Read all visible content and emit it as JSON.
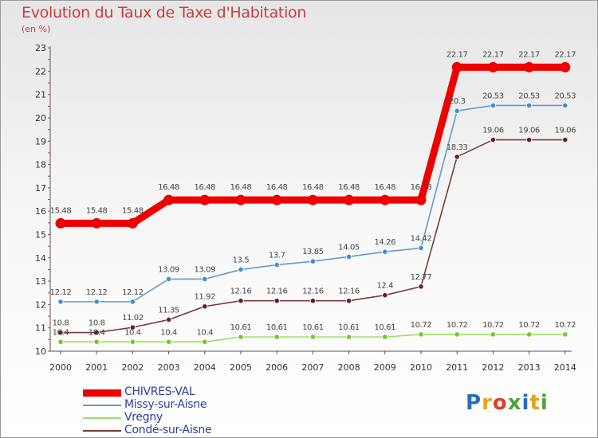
{
  "title": "Evolution du Taux de Taxe d'Habitation",
  "unit_label": "(en %)",
  "logo": {
    "text": "Proxiti",
    "colors": [
      "#2b6cb8",
      "#e8a21a",
      "#e23c2c",
      "#49a53a",
      "#2b6cb8",
      "#e8a21a",
      "#49a53a"
    ]
  },
  "chart_data": {
    "type": "line",
    "title": "Evolution du Taux de Taxe d'Habitation",
    "ylabel": "(en %)",
    "xlabel": "",
    "x": [
      "2000",
      "2001",
      "2002",
      "2003",
      "2004",
      "2005",
      "2006",
      "2007",
      "2008",
      "2009",
      "2010",
      "2011",
      "2012",
      "2013",
      "2014"
    ],
    "ylim": [
      10,
      23
    ],
    "yticks": [
      "10",
      "11",
      "12",
      "13",
      "14",
      "15",
      "16",
      "17",
      "18",
      "19",
      "20",
      "21",
      "22",
      "23"
    ],
    "grid": false,
    "legend_position": "bottom-left",
    "series": [
      {
        "name": "CHIVRES-VAL",
        "color": "#ee0000",
        "marker_color": "#ee0000",
        "values": [
          15.48,
          15.48,
          15.48,
          16.48,
          16.48,
          16.48,
          16.48,
          16.48,
          16.48,
          16.48,
          16.48,
          22.17,
          22.17,
          22.17,
          22.17
        ],
        "labels": [
          "15.48",
          "15.48",
          "15.48",
          "16.48",
          "16.48",
          "16.48",
          "16.48",
          "16.48",
          "16.48",
          "16.48",
          "16.48",
          "22.17",
          "22.17",
          "22.17",
          "22.17"
        ]
      },
      {
        "name": "Missy-sur-Aisne",
        "color": "#6699cc",
        "marker_color": "#3f8fd0",
        "values": [
          12.12,
          12.12,
          12.12,
          13.09,
          13.09,
          13.5,
          13.7,
          13.85,
          14.05,
          14.26,
          14.42,
          20.3,
          20.53,
          20.53,
          20.53
        ],
        "labels": [
          "12.12",
          "12.12",
          "12.12",
          "13.09",
          "13.09",
          "13.5",
          "13.7",
          "13.85",
          "14.05",
          "14.26",
          "14.42",
          "20.3",
          "20.53",
          "20.53",
          "20.53"
        ]
      },
      {
        "name": "Vregny",
        "color": "#99dd66",
        "marker_color": "#6ecb2c",
        "values": [
          10.4,
          10.4,
          10.4,
          10.4,
          10.4,
          10.61,
          10.61,
          10.61,
          10.61,
          10.61,
          10.72,
          10.72,
          10.72,
          10.72,
          10.72
        ],
        "labels": [
          "10.4",
          "10.4",
          "10.4",
          "10.4",
          "10.4",
          "10.61",
          "10.61",
          "10.61",
          "10.61",
          "10.61",
          "10.72",
          "10.72",
          "10.72",
          "10.72",
          "10.72"
        ]
      },
      {
        "name": "Condé-sur-Aisne",
        "color": "#7a3b3b",
        "marker_color": "#6b1f1f",
        "values": [
          10.8,
          10.8,
          11.02,
          11.35,
          11.92,
          12.16,
          12.16,
          12.16,
          12.16,
          12.4,
          12.77,
          18.33,
          19.06,
          19.06,
          19.06
        ],
        "labels": [
          "10.8",
          "10.8",
          "11.02",
          "11.35",
          "11.92",
          "12.16",
          "12.16",
          "12.16",
          "12.16",
          "12.4",
          "12.77",
          "18.33",
          "19.06",
          "19.06",
          "19.06"
        ]
      }
    ]
  }
}
